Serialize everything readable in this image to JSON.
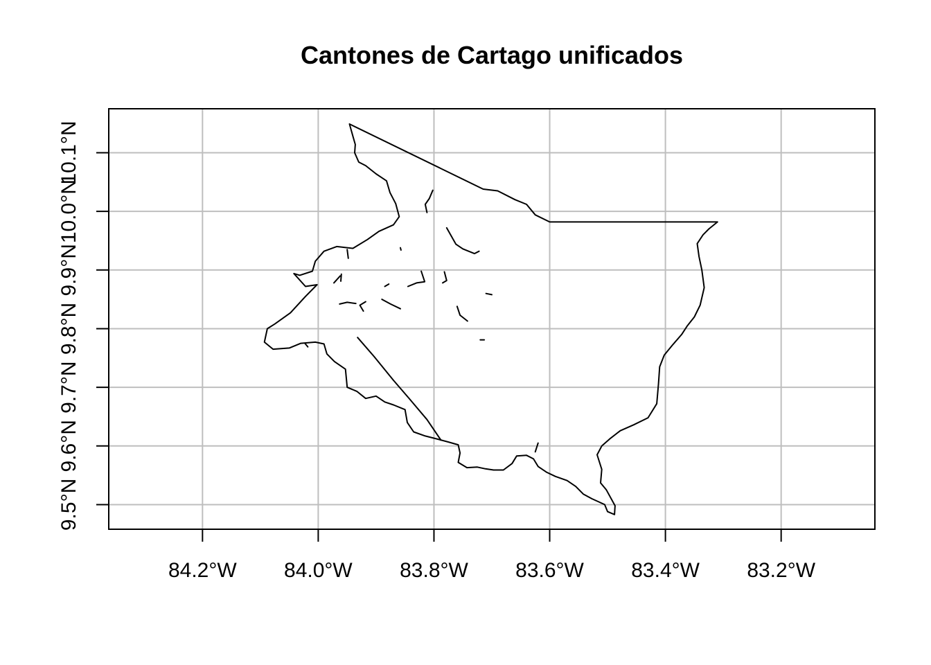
{
  "title": "Cantones de Cartago unificados",
  "axes": {
    "x_ticks": [
      {
        "value": -84.2,
        "label": "84.2°W"
      },
      {
        "value": -84.0,
        "label": "84.0°W"
      },
      {
        "value": -83.8,
        "label": "83.8°W"
      },
      {
        "value": -83.6,
        "label": "83.6°W"
      },
      {
        "value": -83.4,
        "label": "83.4°W"
      },
      {
        "value": -83.2,
        "label": "83.2°W"
      }
    ],
    "y_ticks": [
      {
        "value": 9.5,
        "label": "9.5°N"
      },
      {
        "value": 9.6,
        "label": "9.6°N"
      },
      {
        "value": 9.7,
        "label": "9.7°N"
      },
      {
        "value": 9.8,
        "label": "9.8°N"
      },
      {
        "value": 9.9,
        "label": "9.9°N"
      },
      {
        "value": 10.0,
        "label": "10.0°N"
      },
      {
        "value": 10.1,
        "label": "10.1°N"
      }
    ],
    "xlim": [
      -84.362,
      -83.038
    ],
    "ylim": [
      9.458,
      10.175
    ],
    "grid": true
  },
  "map": {
    "feature": "Cartago",
    "outline": [
      [
        -83.946,
        10.149
      ],
      [
        -83.94,
        10.128
      ],
      [
        -83.936,
        10.114
      ],
      [
        -83.937,
        10.1
      ],
      [
        -83.93,
        10.084
      ],
      [
        -83.918,
        10.078
      ],
      [
        -83.9,
        10.064
      ],
      [
        -83.882,
        10.052
      ],
      [
        -83.876,
        10.032
      ],
      [
        -83.866,
        10.013
      ],
      [
        -83.86,
        9.991
      ],
      [
        -83.87,
        9.977
      ],
      [
        -83.895,
        9.966
      ],
      [
        -83.915,
        9.952
      ],
      [
        -83.94,
        9.937
      ],
      [
        -83.968,
        9.94
      ],
      [
        -83.99,
        9.932
      ],
      [
        -84.005,
        9.915
      ],
      [
        -84.01,
        9.898
      ],
      [
        -84.032,
        9.891
      ],
      [
        -84.042,
        9.894
      ],
      [
        -84.022,
        9.872
      ],
      [
        -84.002,
        9.875
      ],
      [
        -84.022,
        9.855
      ],
      [
        -84.048,
        9.827
      ],
      [
        -84.075,
        9.808
      ],
      [
        -84.088,
        9.8
      ],
      [
        -84.093,
        9.777
      ],
      [
        -84.078,
        9.765
      ],
      [
        -84.05,
        9.767
      ],
      [
        -84.03,
        9.775
      ],
      [
        -84.005,
        9.777
      ],
      [
        -83.99,
        9.774
      ],
      [
        -83.985,
        9.757
      ],
      [
        -83.972,
        9.744
      ],
      [
        -83.953,
        9.731
      ],
      [
        -83.95,
        9.7
      ],
      [
        -83.933,
        9.693
      ],
      [
        -83.918,
        9.681
      ],
      [
        -83.9,
        9.685
      ],
      [
        -83.885,
        9.675
      ],
      [
        -83.87,
        9.67
      ],
      [
        -83.85,
        9.662
      ],
      [
        -83.846,
        9.64
      ],
      [
        -83.835,
        9.624
      ],
      [
        -83.815,
        9.617
      ],
      [
        -83.795,
        9.612
      ],
      [
        -83.776,
        9.607
      ],
      [
        -83.758,
        9.602
      ],
      [
        -83.755,
        9.588
      ],
      [
        -83.758,
        9.572
      ],
      [
        -83.743,
        9.563
      ],
      [
        -83.725,
        9.564
      ],
      [
        -83.711,
        9.561
      ],
      [
        -83.697,
        9.559
      ],
      [
        -83.68,
        9.559
      ],
      [
        -83.665,
        9.57
      ],
      [
        -83.657,
        9.583
      ],
      [
        -83.64,
        9.584
      ],
      [
        -83.628,
        9.578
      ],
      [
        -83.62,
        9.565
      ],
      [
        -83.605,
        9.555
      ],
      [
        -83.59,
        9.548
      ],
      [
        -83.57,
        9.541
      ],
      [
        -83.555,
        9.531
      ],
      [
        -83.542,
        9.518
      ],
      [
        -83.527,
        9.51
      ],
      [
        -83.505,
        9.5
      ],
      [
        -83.5,
        9.488
      ],
      [
        -83.488,
        9.483
      ],
      [
        -83.487,
        9.498
      ],
      [
        -83.502,
        9.525
      ],
      [
        -83.512,
        9.537
      ],
      [
        -83.51,
        9.56
      ],
      [
        -83.518,
        9.585
      ],
      [
        -83.51,
        9.6
      ],
      [
        -83.495,
        9.613
      ],
      [
        -83.478,
        9.626
      ],
      [
        -83.455,
        9.636
      ],
      [
        -83.43,
        9.648
      ],
      [
        -83.415,
        9.672
      ],
      [
        -83.412,
        9.706
      ],
      [
        -83.41,
        9.735
      ],
      [
        -83.402,
        9.755
      ],
      [
        -83.387,
        9.773
      ],
      [
        -83.372,
        9.79
      ],
      [
        -83.362,
        9.805
      ],
      [
        -83.35,
        9.82
      ],
      [
        -83.34,
        9.84
      ],
      [
        -83.333,
        9.87
      ],
      [
        -83.337,
        9.9
      ],
      [
        -83.342,
        9.923
      ],
      [
        -83.345,
        9.945
      ],
      [
        -83.335,
        9.96
      ],
      [
        -83.325,
        9.97
      ],
      [
        -83.31,
        9.982
      ],
      [
        -83.6,
        9.982
      ],
      [
        -83.625,
        9.994
      ],
      [
        -83.64,
        10.012
      ],
      [
        -83.66,
        10.02
      ],
      [
        -83.69,
        10.035
      ],
      [
        -83.715,
        10.038
      ],
      [
        -83.946,
        10.149
      ]
    ],
    "islands": [
      [
        [
          -83.932,
          9.785
        ],
        [
          -83.903,
          9.752
        ],
        [
          -83.87,
          9.712
        ],
        [
          -83.842,
          9.68
        ],
        [
          -83.812,
          9.645
        ],
        [
          -83.788,
          9.61
        ]
      ],
      [
        [
          -83.802,
          10.036
        ],
        [
          -83.808,
          10.022
        ],
        [
          -83.815,
          10.012
        ],
        [
          -83.812,
          9.998
        ]
      ],
      [
        [
          -83.778,
          9.972
        ],
        [
          -83.77,
          9.958
        ],
        [
          -83.762,
          9.944
        ],
        [
          -83.75,
          9.936
        ],
        [
          -83.73,
          9.928
        ],
        [
          -83.722,
          9.932
        ]
      ],
      [
        [
          -83.963,
          9.842
        ],
        [
          -83.95,
          9.845
        ],
        [
          -83.935,
          9.843
        ]
      ],
      [
        [
          -83.822,
          9.898
        ],
        [
          -83.816,
          9.88
        ],
        [
          -83.83,
          9.878
        ],
        [
          -83.845,
          9.872
        ]
      ],
      [
        [
          -83.89,
          9.85
        ],
        [
          -83.875,
          9.842
        ],
        [
          -83.858,
          9.834
        ]
      ],
      [
        [
          -83.782,
          9.897
        ],
        [
          -83.778,
          9.882
        ],
        [
          -83.785,
          9.878
        ]
      ],
      [
        [
          -83.76,
          9.838
        ],
        [
          -83.755,
          9.823
        ],
        [
          -83.742,
          9.813
        ]
      ],
      [
        [
          -83.71,
          9.86
        ],
        [
          -83.7,
          9.858
        ]
      ],
      [
        [
          -83.62,
          9.605
        ],
        [
          -83.625,
          9.59
        ]
      ],
      [
        [
          -83.918,
          9.846
        ],
        [
          -83.928,
          9.84
        ],
        [
          -83.922,
          9.83
        ]
      ],
      [
        [
          -83.973,
          9.878
        ],
        [
          -83.962,
          9.89
        ]
      ],
      [
        [
          -83.885,
          9.872
        ],
        [
          -83.878,
          9.876
        ]
      ],
      [
        [
          -83.858,
          9.938
        ],
        [
          -83.857,
          9.934
        ]
      ],
      [
        [
          -84.023,
          9.775
        ],
        [
          -84.018,
          9.769
        ]
      ],
      [
        [
          -83.72,
          9.781
        ],
        [
          -83.713,
          9.781
        ]
      ],
      [
        [
          -83.948,
          9.92
        ],
        [
          -83.95,
          9.935
        ]
      ],
      [
        [
          -83.961,
          9.881
        ],
        [
          -83.96,
          9.893
        ]
      ]
    ]
  }
}
